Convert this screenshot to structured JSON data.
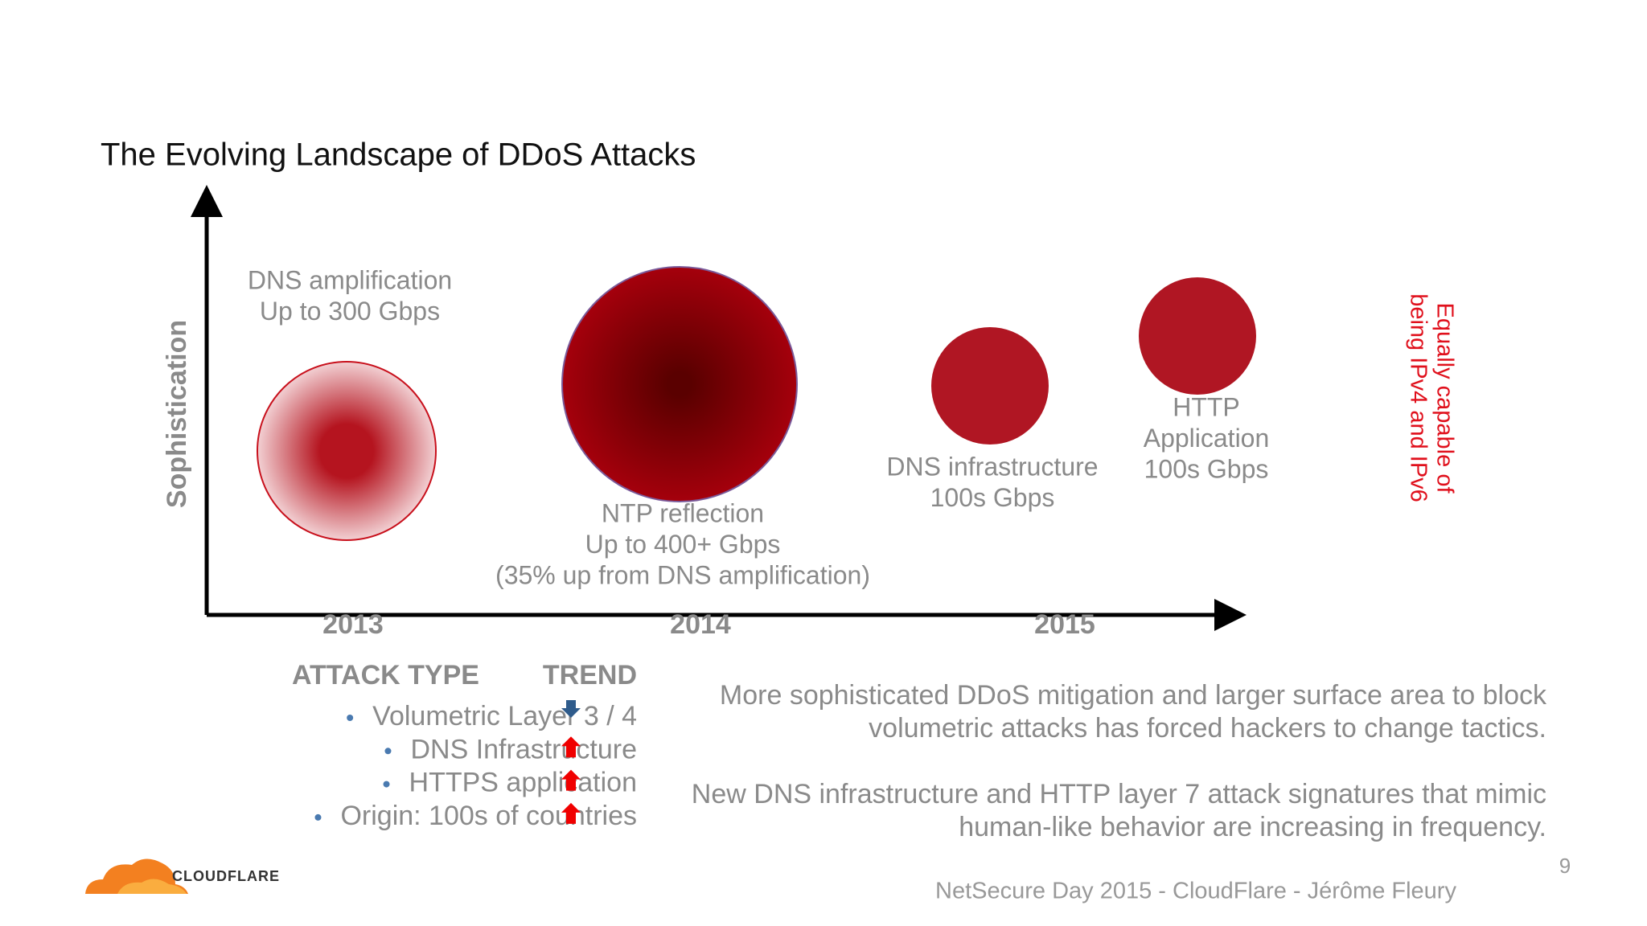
{
  "title": "The Evolving Landscape of DDoS Attacks",
  "y_axis_label": "Sophistication",
  "x_labels": [
    "2013",
    "2014",
    "2015"
  ],
  "bubbles": [
    {
      "lines": [
        "DNS amplification",
        "Up to 300 Gbps"
      ]
    },
    {
      "lines": [
        "NTP reflection",
        "Up to 400+ Gbps",
        "(35% up from DNS amplification)"
      ]
    },
    {
      "lines": [
        "DNS infrastructure",
        "100s Gbps"
      ]
    },
    {
      "lines": [
        "HTTP",
        "Application",
        "100s Gbps"
      ]
    }
  ],
  "side_note": [
    "Equally capable of",
    "being IPv4 and IPv6"
  ],
  "table": {
    "headers": [
      "ATTACK TYPE",
      "TREND"
    ],
    "items": [
      "Volumetric Layer 3 / 4",
      "DNS Infrastructure",
      "HTTPS application",
      "Origin: 100s of countries"
    ]
  },
  "paragraphs": [
    [
      "More sophisticated DDoS mitigation and larger surface area to block",
      "volumetric attacks has forced hackers to change tactics."
    ],
    [
      "New DNS infrastructure and HTTP layer 7 attack signatures that mimic",
      "human-like behavior are increasing in frequency."
    ]
  ],
  "logo": "CLOUDFLARE",
  "page_number": "9",
  "footer": "NetSecure Day 2015 - CloudFlare - Jérôme Fleury"
}
